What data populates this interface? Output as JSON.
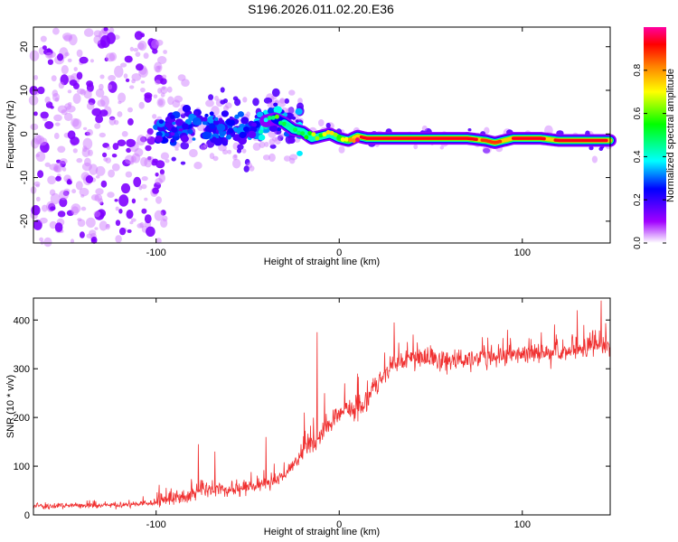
{
  "title": "S196.2026.011.02.20.E36",
  "chart_data": [
    {
      "type": "heatmap",
      "title": "S196.2026.011.02.20.E36",
      "xlabel": "Height of straight line (km)",
      "ylabel": "Frequency (Hz)",
      "xlim": [
        -167,
        148
      ],
      "ylim": [
        -25,
        24.5
      ],
      "xticks": [
        -100,
        0,
        100
      ],
      "yticks": [
        -20,
        -10,
        0,
        10,
        20
      ],
      "colorbar": {
        "label": "Normalized spectral amplitude",
        "range": [
          0.0,
          1.0
        ],
        "ticks": [
          0.0,
          0.2,
          0.4,
          0.6,
          0.8
        ],
        "tick_labels": [
          "0.0",
          "0.2",
          "0.4",
          "0.6",
          "0.8"
        ],
        "colormap": "rainbow (white-purple-blue-cyan-green-yellow-orange-red-magenta)"
      },
      "ridge": {
        "x": [
          -167,
          -100,
          -90,
          -80,
          -70,
          -60,
          -50,
          -40,
          -35,
          -30,
          -25,
          -20,
          -15,
          -10,
          -5,
          0,
          5,
          10,
          15,
          20,
          40,
          60,
          70,
          80,
          85,
          90,
          95,
          100,
          110,
          120,
          130,
          140,
          148
        ],
        "frequency_hz": [
          0,
          0,
          1.5,
          2.0,
          1.5,
          1.0,
          0.5,
          3.0,
          3.5,
          2.5,
          1.0,
          0.5,
          -1.0,
          -0.5,
          0.0,
          -1.0,
          -1.5,
          -0.5,
          -1.0,
          -1.0,
          -1.0,
          -1.0,
          -1.0,
          -1.5,
          -2.0,
          -1.5,
          -1.0,
          -1.0,
          -1.0,
          -1.5,
          -1.5,
          -1.5,
          -1.5
        ],
        "amplitude": [
          0.05,
          0.2,
          0.25,
          0.3,
          0.3,
          0.35,
          0.4,
          0.45,
          0.55,
          0.5,
          0.5,
          0.5,
          0.65,
          0.6,
          0.7,
          0.6,
          0.75,
          0.95,
          0.95,
          0.95,
          0.95,
          0.95,
          0.9,
          0.9,
          0.85,
          0.9,
          0.9,
          0.95,
          0.95,
          0.95,
          0.95,
          0.95,
          0.95
        ]
      }
    },
    {
      "type": "line",
      "xlabel": "Height of straight line (km)",
      "ylabel": "SNR (10 * v/v)",
      "xlim": [
        -167,
        148
      ],
      "ylim": [
        0,
        445
      ],
      "xticks": [
        -100,
        0,
        100
      ],
      "yticks": [
        0,
        100,
        200,
        300,
        400
      ],
      "series": [
        {
          "name": "SNR",
          "color": "#f03030",
          "trend_x": [
            -167,
            -120,
            -100,
            -90,
            -80,
            -70,
            -60,
            -50,
            -40,
            -30,
            -25,
            -20,
            -15,
            -10,
            -5,
            0,
            5,
            10,
            15,
            20,
            25,
            30,
            40,
            50,
            60,
            80,
            100,
            120,
            140,
            148
          ],
          "trend_y": [
            18,
            20,
            25,
            32,
            42,
            52,
            50,
            55,
            62,
            82,
            105,
            125,
            145,
            165,
            185,
            205,
            215,
            220,
            235,
            265,
            290,
            305,
            322,
            318,
            315,
            320,
            330,
            335,
            345,
            350
          ],
          "spikes": [
            {
              "x": -77,
              "y": 145
            },
            {
              "x": -68,
              "y": 130
            },
            {
              "x": -40,
              "y": 160
            },
            {
              "x": -19,
              "y": 210
            },
            {
              "x": -12,
              "y": 375
            },
            {
              "x": -8,
              "y": 250
            },
            {
              "x": 3,
              "y": 270
            },
            {
              "x": 10,
              "y": 290
            },
            {
              "x": 30,
              "y": 395
            },
            {
              "x": 92,
              "y": 380
            },
            {
              "x": 130,
              "y": 420
            },
            {
              "x": 143,
              "y": 440
            }
          ]
        }
      ]
    }
  ]
}
